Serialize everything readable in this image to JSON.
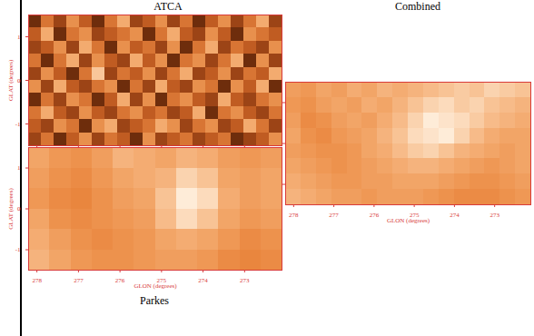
{
  "chart_data": [
    {
      "type": "heatmap",
      "title": "ATCA",
      "ylabel": "GLAT (degrees)",
      "xlim": [
        278.2,
        272.1
      ],
      "ylim": [
        -1.5,
        1.5
      ],
      "xticks": [
        278,
        277,
        276,
        275,
        274,
        273
      ],
      "yticks": [
        -1,
        0,
        1
      ],
      "tick_labels": "y",
      "colors": [
        "#000000",
        "#c04a12",
        "#f8a050",
        "#ffffff"
      ],
      "zlim": [
        0,
        1
      ],
      "cells": [
        [
          0.2,
          0.5,
          0.3,
          0.6,
          0.4,
          0.2,
          0.5,
          0.7,
          0.3,
          0.4,
          0.6,
          0.3,
          0.5,
          0.2,
          0.4,
          0.6,
          0.3,
          0.5,
          0.7,
          0.3
        ],
        [
          0.4,
          0.7,
          0.2,
          0.5,
          0.6,
          0.3,
          0.4,
          0.5,
          0.6,
          0.2,
          0.5,
          0.7,
          0.4,
          0.3,
          0.6,
          0.4,
          0.2,
          0.6,
          0.5,
          0.4
        ],
        [
          0.3,
          0.4,
          0.6,
          0.3,
          0.7,
          0.5,
          0.2,
          0.6,
          0.4,
          0.5,
          0.3,
          0.6,
          0.2,
          0.5,
          0.7,
          0.3,
          0.5,
          0.4,
          0.3,
          0.6
        ],
        [
          0.5,
          0.2,
          0.5,
          0.7,
          0.3,
          0.6,
          0.4,
          0.3,
          0.7,
          0.4,
          0.6,
          0.2,
          0.5,
          0.6,
          0.3,
          0.5,
          0.7,
          0.2,
          0.6,
          0.3
        ],
        [
          0.3,
          0.6,
          0.4,
          0.2,
          0.5,
          0.8,
          0.3,
          0.5,
          0.4,
          0.6,
          0.3,
          0.5,
          0.7,
          0.3,
          0.4,
          0.6,
          0.3,
          0.5,
          0.4,
          0.7
        ],
        [
          0.6,
          0.3,
          0.7,
          0.4,
          0.3,
          0.5,
          0.6,
          0.2,
          0.5,
          0.3,
          0.7,
          0.4,
          0.3,
          0.6,
          0.5,
          0.2,
          0.6,
          0.4,
          0.7,
          0.2
        ],
        [
          0.2,
          0.5,
          0.3,
          0.6,
          0.5,
          0.2,
          0.4,
          0.7,
          0.3,
          0.6,
          0.2,
          0.5,
          0.6,
          0.4,
          0.3,
          0.7,
          0.4,
          0.3,
          0.5,
          0.6
        ],
        [
          0.5,
          0.7,
          0.4,
          0.3,
          0.6,
          0.4,
          0.3,
          0.5,
          0.6,
          0.4,
          0.5,
          0.3,
          0.4,
          0.7,
          0.2,
          0.5,
          0.6,
          0.4,
          0.3,
          0.5
        ],
        [
          0.4,
          0.3,
          0.6,
          0.5,
          0.2,
          0.6,
          0.7,
          0.3,
          0.4,
          0.5,
          0.7,
          0.6,
          0.3,
          0.5,
          0.6,
          0.3,
          0.4,
          0.7,
          0.5,
          0.3
        ],
        [
          0.3,
          0.5,
          0.2,
          0.4,
          0.6,
          0.3,
          0.5,
          0.4,
          0.2,
          0.6,
          0.3,
          0.4,
          0.5,
          0.3,
          0.4,
          0.5,
          0.2,
          0.3,
          0.4,
          0.6
        ]
      ]
    },
    {
      "type": "heatmap",
      "title": "Parkes",
      "xlabel": "GLON (degrees)",
      "ylabel": "GLAT (degrees)",
      "xlim": [
        278.2,
        272.1
      ],
      "ylim": [
        -1.5,
        1.5
      ],
      "xticks": [
        278,
        277,
        276,
        275,
        274,
        273
      ],
      "yticks": [
        -1,
        0,
        1
      ],
      "tick_labels": true,
      "colors": [
        "#de6a1e",
        "#f4a05a",
        "#fff4e6"
      ],
      "zlim": [
        0,
        1
      ],
      "cells": [
        [
          0.5,
          0.4,
          0.35,
          0.45,
          0.6,
          0.55,
          0.5,
          0.6,
          0.55,
          0.45,
          0.4,
          0.45
        ],
        [
          0.45,
          0.35,
          0.3,
          0.4,
          0.5,
          0.55,
          0.6,
          0.8,
          0.7,
          0.5,
          0.45,
          0.5
        ],
        [
          0.4,
          0.3,
          0.25,
          0.35,
          0.45,
          0.5,
          0.7,
          0.95,
          0.85,
          0.55,
          0.45,
          0.5
        ],
        [
          0.5,
          0.35,
          0.3,
          0.35,
          0.4,
          0.45,
          0.65,
          0.85,
          0.7,
          0.5,
          0.4,
          0.45
        ],
        [
          0.55,
          0.45,
          0.35,
          0.3,
          0.35,
          0.4,
          0.5,
          0.55,
          0.5,
          0.4,
          0.3,
          0.35
        ],
        [
          0.6,
          0.5,
          0.4,
          0.35,
          0.35,
          0.4,
          0.45,
          0.45,
          0.4,
          0.3,
          0.25,
          0.3
        ]
      ]
    },
    {
      "type": "heatmap",
      "title": "Combined",
      "xlabel": "GLON (degrees)",
      "xlim": [
        278.2,
        272.1
      ],
      "ylim": [
        -1.5,
        1.5
      ],
      "xticks": [
        278,
        277,
        276,
        275,
        274,
        273
      ],
      "yticks": [
        -1,
        0,
        1
      ],
      "tick_labels": "x",
      "colors": [
        "#de6a1e",
        "#f4a05a",
        "#fff4e6"
      ],
      "zlim": [
        0,
        1
      ],
      "cells": [
        [
          0.45,
          0.4,
          0.5,
          0.45,
          0.55,
          0.5,
          0.6,
          0.55,
          0.6,
          0.65,
          0.7,
          0.75,
          0.7,
          0.8,
          0.75,
          0.7
        ],
        [
          0.4,
          0.35,
          0.45,
          0.5,
          0.45,
          0.55,
          0.5,
          0.6,
          0.7,
          0.8,
          0.85,
          0.75,
          0.8,
          0.7,
          0.65,
          0.6
        ],
        [
          0.45,
          0.3,
          0.35,
          0.45,
          0.5,
          0.45,
          0.55,
          0.65,
          0.8,
          0.95,
          0.9,
          0.85,
          0.75,
          0.65,
          0.6,
          0.55
        ],
        [
          0.5,
          0.35,
          0.3,
          0.4,
          0.45,
          0.5,
          0.6,
          0.7,
          0.85,
          0.9,
          0.95,
          0.8,
          0.65,
          0.55,
          0.5,
          0.5
        ],
        [
          0.45,
          0.4,
          0.35,
          0.35,
          0.4,
          0.5,
          0.55,
          0.65,
          0.75,
          0.8,
          0.7,
          0.6,
          0.55,
          0.5,
          0.45,
          0.5
        ],
        [
          0.5,
          0.45,
          0.4,
          0.35,
          0.4,
          0.45,
          0.5,
          0.55,
          0.6,
          0.6,
          0.55,
          0.5,
          0.45,
          0.4,
          0.45,
          0.5
        ],
        [
          0.55,
          0.5,
          0.45,
          0.4,
          0.4,
          0.45,
          0.45,
          0.5,
          0.5,
          0.5,
          0.45,
          0.4,
          0.35,
          0.35,
          0.4,
          0.45
        ],
        [
          0.6,
          0.55,
          0.5,
          0.45,
          0.45,
          0.4,
          0.45,
          0.45,
          0.45,
          0.4,
          0.35,
          0.3,
          0.3,
          0.3,
          0.35,
          0.4
        ]
      ]
    }
  ]
}
